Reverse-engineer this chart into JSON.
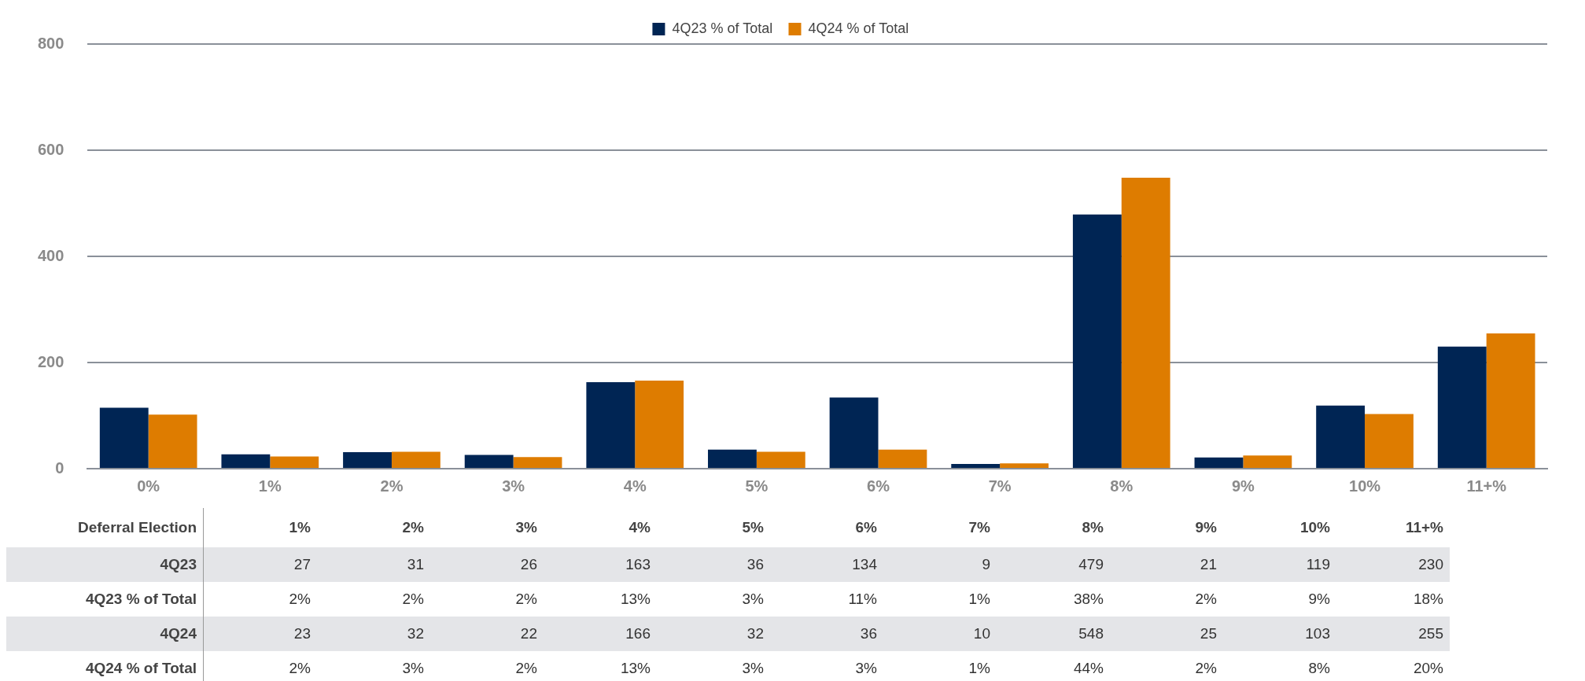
{
  "chart_data": {
    "type": "bar",
    "categories": [
      "0%",
      "1%",
      "2%",
      "3%",
      "4%",
      "5%",
      "6%",
      "7%",
      "8%",
      "9%",
      "10%",
      "11+%"
    ],
    "series": [
      {
        "name": "4Q23 % of Total",
        "color": "#002554",
        "values": [
          115,
          27,
          31,
          26,
          163,
          36,
          134,
          9,
          479,
          21,
          119,
          230
        ],
        "value_labels": [
          null,
          "27",
          "31",
          "26",
          "163",
          "36",
          "134",
          "9",
          "479",
          "21",
          "119",
          "230"
        ]
      },
      {
        "name": "4Q24 % of Total",
        "color": "#de7c00",
        "values": [
          102,
          23,
          32,
          22,
          166,
          32,
          36,
          10,
          548,
          25,
          103,
          255
        ],
        "value_labels": [
          null,
          "23",
          "32",
          "22",
          "166",
          "32",
          "36",
          "10",
          "548",
          "25",
          "103",
          "255"
        ]
      }
    ],
    "ylim": [
      0,
      800
    ],
    "yticks": [
      0,
      200,
      400,
      600,
      800
    ],
    "grid": "y",
    "legend": "top",
    "annotations": [
      "Deferral Election",
      "4Q23",
      "4Q23 % of Total",
      "4Q24",
      "4Q24 % of Total",
      "2%",
      "2%",
      "2%",
      "13%",
      "3%",
      "11%",
      "1%",
      "38%",
      "2%",
      "9%",
      "18%",
      "2%",
      "3%",
      "2%",
      "13%",
      "3%",
      "3%",
      "1%",
      "44%",
      "2%",
      "8%",
      "20%"
    ]
  }
}
